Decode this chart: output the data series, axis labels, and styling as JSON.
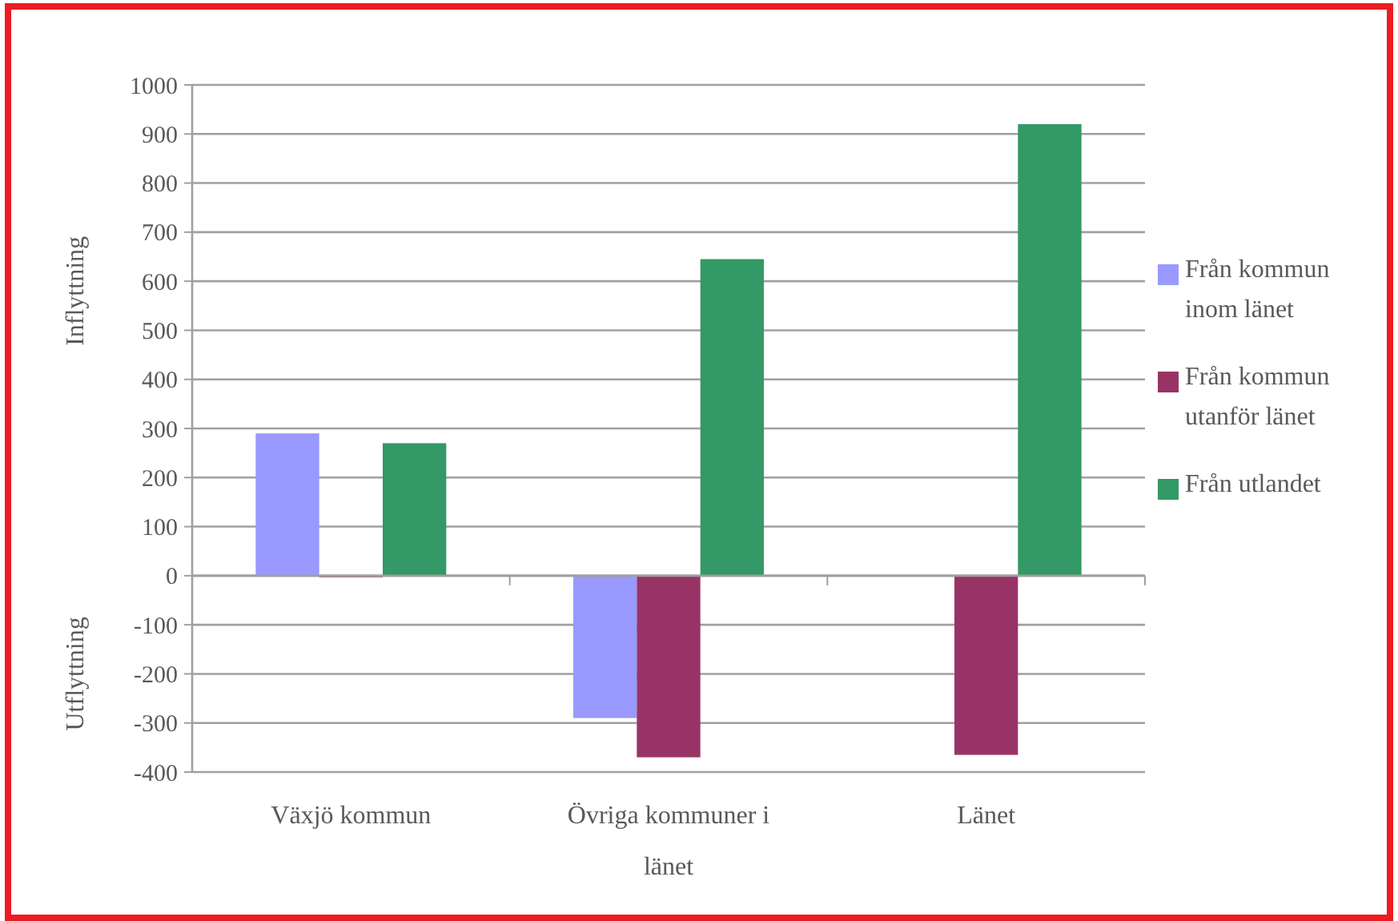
{
  "chart_data": {
    "type": "bar",
    "ylabel": "Inflyttning",
    "annotations": [
      "Utflyttning"
    ],
    "categories": [
      "Växjö kommun",
      "Övriga kommuner i länet",
      "Länet"
    ],
    "series": [
      {
        "name": "Från kommun inom länet",
        "color": "#9999ff",
        "values": [
          290,
          -290,
          null
        ]
      },
      {
        "name": "Från kommun utanför länet",
        "color": "#993366",
        "values": [
          -3,
          -370,
          -365
        ]
      },
      {
        "name": "Från utlandet",
        "color": "#339966",
        "values": [
          270,
          645,
          920
        ]
      }
    ],
    "ylim": [
      -400,
      1000
    ],
    "yticks": [
      -400,
      -300,
      -200,
      -100,
      0,
      100,
      200,
      300,
      400,
      500,
      600,
      700,
      800,
      900,
      1000
    ],
    "grid": "y",
    "legend": "right"
  }
}
